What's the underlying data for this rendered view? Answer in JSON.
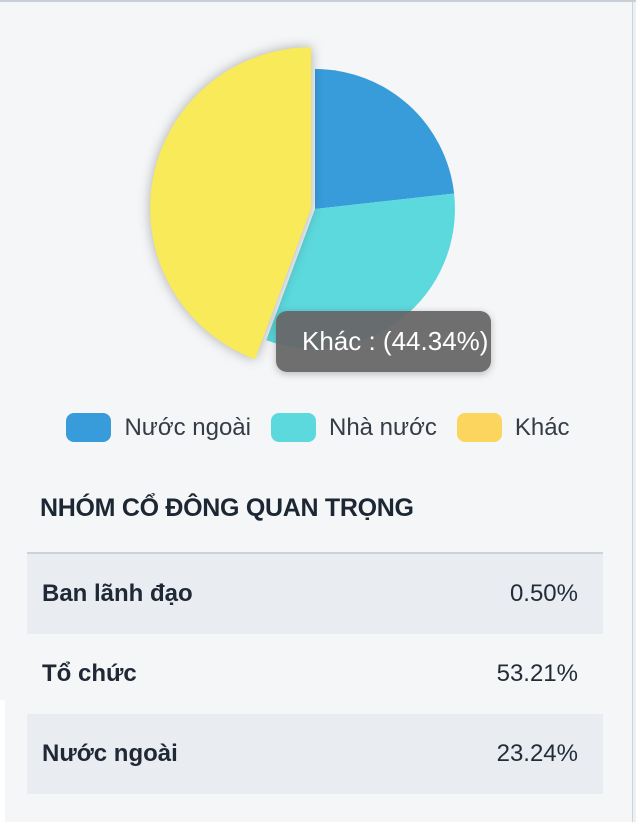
{
  "panel": {
    "background": "#f5f6f8",
    "row_shade_color": "#e9edf2"
  },
  "chart_data": {
    "type": "pie",
    "title": "",
    "start_angle_deg": 0,
    "direction": "clockwise",
    "legend_position": "bottom",
    "slices": [
      {
        "id": "nuoc-ngoai",
        "label": "Nước ngoài",
        "value": 23.24,
        "color": "#389cda"
      },
      {
        "id": "nha-nuoc",
        "label": "Nhà nước",
        "value": 32.42,
        "color": "#5cd9dd"
      },
      {
        "id": "khac",
        "label": "Khác",
        "value": 44.34,
        "color": "#f8ea58",
        "legend_color": "#fbd55e",
        "selected": true,
        "hovered": true
      }
    ],
    "tooltip": {
      "text": "Khác : (44.34%)",
      "slice": "Khác",
      "value_pct": 44.34
    }
  },
  "section": {
    "title": "NHÓM CỔ ĐÔNG QUAN TRỌNG"
  },
  "table": {
    "rows": [
      {
        "label": "Ban lãnh đạo",
        "value": "0.50%"
      },
      {
        "label": "Tổ chức",
        "value": "53.21%"
      },
      {
        "label": "Nước ngoài",
        "value": "23.24%"
      }
    ]
  }
}
